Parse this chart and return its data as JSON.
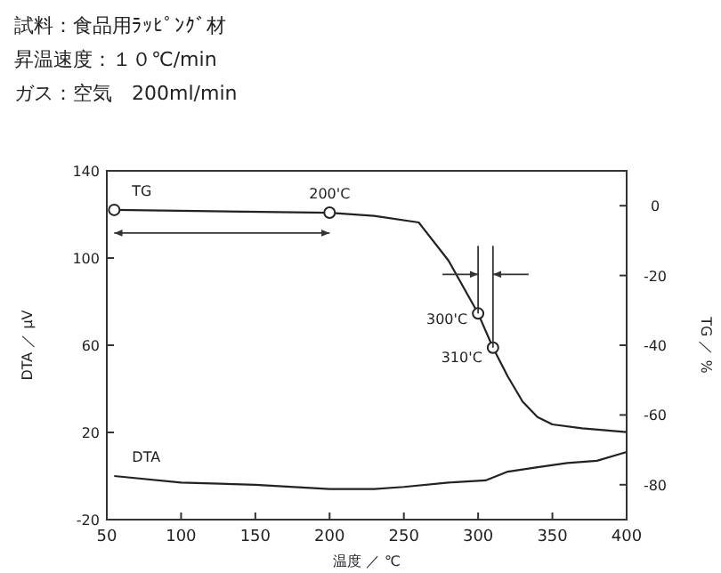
{
  "chart_data": {
    "type": "line",
    "title": "試料：食品用ﾗｯﾋﾟﾝｸﾞ材",
    "subtitle": "昇温速度：１０℃/min",
    "xlabel": "温度 ／ ℃",
    "ylabel": "DTA ／ μV",
    "y2label": "TG ／ %",
    "xlim": [
      50,
      400
    ],
    "xticks": [
      50,
      100,
      150,
      200,
      250,
      300,
      350,
      400
    ],
    "ylim": [
      -20,
      140
    ],
    "yticks": [
      -20,
      20,
      60,
      100,
      140
    ],
    "y2lim": [
      -90,
      10
    ],
    "y2ticks": [
      0,
      -20,
      -40,
      -60,
      -80
    ],
    "grid": false,
    "marker": "none",
    "line_style": "solid",
    "series": [
      {
        "name": "TG",
        "axis": "y2",
        "color": "#222222",
        "x": [
          55,
          200,
          230,
          260,
          280,
          300,
          310,
          320,
          330,
          340,
          350,
          370,
          400
        ],
        "values": [
          -1.2,
          -2.0,
          -2.9,
          -4.8,
          -15.7,
          -30.9,
          -40.7,
          -49,
          -56.2,
          -60.6,
          -62.7,
          -63.8,
          -64.9
        ]
      },
      {
        "name": "DTA",
        "color": "#222222",
        "x": [
          55,
          100,
          150,
          200,
          230,
          250,
          280,
          305,
          320,
          340,
          360,
          380,
          400
        ],
        "values": [
          0,
          -3,
          -4,
          -6,
          -6,
          -5,
          -3,
          -2,
          2,
          4,
          6,
          7,
          11
        ]
      },
      {
        "type": "scatter",
        "axis": "y2",
        "marker": "circle",
        "color": "#222222",
        "x": [
          55,
          200,
          300,
          310
        ],
        "values": [
          -1.2,
          -2.0,
          -30.9,
          -40.7
        ]
      }
    ],
    "annotations": [
      "ガス：空気　200ml/min",
      "200'C",
      "300'C",
      "310'C"
    ]
  }
}
